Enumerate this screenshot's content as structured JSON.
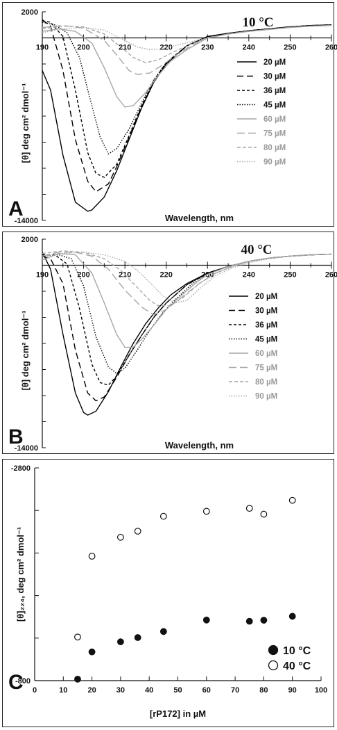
{
  "chart_data": [
    {
      "panel": "A",
      "type": "line",
      "title": "10 °C",
      "xlabel": "Wavelength, nm",
      "ylabel": "[θ] deg cm² dmol⁻¹",
      "xlim": [
        190,
        260
      ],
      "ylim": [
        -14000,
        2000
      ],
      "x_ticks": [
        "190",
        "200",
        "210",
        "220",
        "230",
        "240",
        "250",
        "260"
      ],
      "y_ticks": [
        "2000",
        "-14000"
      ],
      "legend_position": "right",
      "series": [
        {
          "name": "20 µM",
          "color": "#000000",
          "dash": "",
          "x": [
            190,
            192,
            195,
            198,
            201,
            202,
            205,
            208,
            211,
            214,
            217,
            220,
            225,
            230,
            235,
            240,
            245,
            250,
            255,
            260
          ],
          "y": [
            -2500,
            -4000,
            -9000,
            -12600,
            -13300,
            -13200,
            -12200,
            -10200,
            -7800,
            -5400,
            -3400,
            -2000,
            -600,
            100,
            350,
            550,
            700,
            850,
            950,
            1000
          ]
        },
        {
          "name": "30 µM",
          "color": "#000000",
          "dash": "9,5",
          "x": [
            190,
            192,
            195,
            198,
            201,
            203,
            206,
            208,
            211,
            214,
            217,
            220,
            225,
            230,
            235,
            240,
            245,
            250,
            255,
            260
          ],
          "y": [
            1400,
            900,
            -2500,
            -7800,
            -11000,
            -11800,
            -11200,
            -9900,
            -7600,
            -5300,
            -3400,
            -2000,
            -600,
            100,
            350,
            550,
            700,
            850,
            950,
            1000
          ]
        },
        {
          "name": "36 µM",
          "color": "#000000",
          "dash": "4,3",
          "x": [
            190,
            192,
            195,
            198,
            201,
            203,
            205,
            208,
            211,
            214,
            217,
            220,
            225,
            230,
            235,
            240,
            245,
            250,
            255,
            260
          ],
          "y": [
            1300,
            1200,
            100,
            -4000,
            -8800,
            -10400,
            -10700,
            -9700,
            -7500,
            -5200,
            -3300,
            -1900,
            -600,
            100,
            350,
            550,
            700,
            850,
            950,
            1000
          ]
        },
        {
          "name": "45 µM",
          "color": "#000000",
          "dash": "1.5,2",
          "x": [
            190,
            193,
            196,
            199,
            202,
            204,
            206,
            208,
            211,
            214,
            217,
            220,
            225,
            230,
            235,
            240,
            245,
            250,
            255,
            260
          ],
          "y": [
            1200,
            1000,
            400,
            -1500,
            -5200,
            -7600,
            -8900,
            -8500,
            -7000,
            -5000,
            -3200,
            -1900,
            -600,
            100,
            350,
            550,
            700,
            850,
            950,
            1000
          ]
        },
        {
          "name": "60 µM",
          "color": "#a6a6a6",
          "dash": "",
          "x": [
            190,
            194,
            198,
            202,
            205,
            208,
            210,
            212,
            215,
            218,
            221,
            225,
            230,
            235,
            240,
            245,
            250,
            255,
            260
          ],
          "y": [
            500,
            700,
            500,
            -400,
            -2300,
            -4500,
            -5300,
            -5200,
            -4200,
            -2900,
            -1800,
            -900,
            0,
            300,
            500,
            650,
            800,
            900,
            950
          ]
        },
        {
          "name": "75 µM",
          "color": "#a6a6a6",
          "dash": "11,5",
          "x": [
            190,
            195,
            200,
            205,
            208,
            211,
            213,
            216,
            219,
            222,
            226,
            230,
            235,
            240,
            245,
            250,
            255,
            260
          ],
          "y": [
            800,
            950,
            750,
            -200,
            -1300,
            -2500,
            -2800,
            -2700,
            -2100,
            -1400,
            -600,
            0,
            300,
            500,
            650,
            800,
            900,
            950
          ]
        },
        {
          "name": "80 µM",
          "color": "#a6a6a6",
          "dash": "5,3",
          "x": [
            190,
            195,
            200,
            205,
            209,
            212,
            215,
            218,
            221,
            225,
            230,
            235,
            240,
            245,
            250,
            255,
            260
          ],
          "y": [
            700,
            900,
            850,
            300,
            -700,
            -1500,
            -1900,
            -1700,
            -1200,
            -600,
            0,
            300,
            500,
            650,
            800,
            900,
            950
          ]
        },
        {
          "name": "90 µM",
          "color": "#a6a6a6",
          "dash": "1.5,2",
          "x": [
            190,
            195,
            200,
            205,
            210,
            213,
            216,
            219,
            222,
            226,
            230,
            235,
            240,
            245,
            250,
            255,
            260
          ],
          "y": [
            400,
            700,
            800,
            600,
            -200,
            -700,
            -900,
            -850,
            -600,
            -300,
            0,
            300,
            500,
            650,
            800,
            900,
            950
          ]
        }
      ]
    },
    {
      "panel": "B",
      "type": "line",
      "title": "40 °C",
      "xlabel": "Wavelength, nm",
      "ylabel": "[θ] deg cm² dmol⁻¹",
      "xlim": [
        190,
        260
      ],
      "ylim": [
        -14000,
        2000
      ],
      "x_ticks": [
        "190",
        "200",
        "210",
        "220",
        "230",
        "240",
        "250",
        "260"
      ],
      "y_ticks": [
        "2000",
        "-14000"
      ],
      "legend_position": "right",
      "series": [
        {
          "name": "20 µM",
          "color": "#000000",
          "dash": "",
          "x": [
            190,
            192,
            195,
            198,
            200,
            201,
            203,
            206,
            209,
            212,
            215,
            218,
            221,
            225,
            230,
            235,
            240,
            245,
            250,
            255,
            260
          ],
          "y": [
            1000,
            -300,
            -5300,
            -9800,
            -11300,
            -11500,
            -11200,
            -9700,
            -7800,
            -6000,
            -4500,
            -3300,
            -2300,
            -1400,
            -600,
            -100,
            300,
            550,
            700,
            800,
            850
          ]
        },
        {
          "name": "30 µM",
          "color": "#000000",
          "dash": "9,5",
          "x": [
            190,
            192,
            195,
            198,
            201,
            203,
            205,
            208,
            211,
            214,
            217,
            220,
            225,
            230,
            235,
            240,
            245,
            250,
            255,
            260
          ],
          "y": [
            700,
            500,
            -1400,
            -6500,
            -9800,
            -10400,
            -10100,
            -8600,
            -6900,
            -5400,
            -4000,
            -2900,
            -1500,
            -600,
            -100,
            300,
            550,
            700,
            800,
            850
          ]
        },
        {
          "name": "36 µM",
          "color": "#000000",
          "dash": "4,3",
          "x": [
            190,
            193,
            196,
            199,
            202,
            204,
            206,
            208,
            211,
            214,
            217,
            220,
            225,
            230,
            235,
            240,
            245,
            250,
            255,
            260
          ],
          "y": [
            800,
            800,
            100,
            -3300,
            -7600,
            -9000,
            -9200,
            -8500,
            -6900,
            -5400,
            -4000,
            -2900,
            -1500,
            -600,
            -100,
            300,
            550,
            700,
            800,
            850
          ]
        },
        {
          "name": "45 µM",
          "color": "#000000",
          "dash": "1.5,2",
          "x": [
            190,
            194,
            197,
            200,
            203,
            206,
            208,
            210,
            213,
            216,
            219,
            222,
            226,
            230,
            235,
            240,
            245,
            250,
            255,
            260
          ],
          "y": [
            700,
            800,
            500,
            -1600,
            -5500,
            -7800,
            -8300,
            -7900,
            -6500,
            -5000,
            -3700,
            -2700,
            -1500,
            -600,
            -100,
            300,
            550,
            700,
            800,
            850
          ]
        },
        {
          "name": "60 µM",
          "color": "#a6a6a6",
          "dash": "",
          "x": [
            190,
            194,
            198,
            202,
            205,
            208,
            210,
            212,
            214,
            217,
            220,
            223,
            227,
            230,
            235,
            240,
            245,
            250,
            255,
            260
          ],
          "y": [
            400,
            900,
            800,
            -600,
            -2900,
            -5300,
            -6300,
            -6300,
            -5700,
            -4600,
            -3400,
            -2500,
            -1400,
            -700,
            -100,
            300,
            550,
            700,
            800,
            850
          ]
        },
        {
          "name": "75 µM",
          "color": "#a6a6a6",
          "dash": "11,5",
          "x": [
            190,
            194,
            198,
            202,
            206,
            210,
            214,
            217,
            220,
            224,
            228,
            232,
            236,
            240,
            245,
            250,
            255,
            260
          ],
          "y": [
            700,
            1000,
            1000,
            700,
            -300,
            -1900,
            -3200,
            -3800,
            -3400,
            -2400,
            -1400,
            -600,
            -100,
            300,
            550,
            700,
            800,
            850
          ]
        },
        {
          "name": "80 µM",
          "color": "#a6a6a6",
          "dash": "5,3",
          "x": [
            190,
            195,
            200,
            205,
            209,
            213,
            216,
            218,
            221,
            224,
            228,
            232,
            236,
            240,
            245,
            250,
            255,
            260
          ],
          "y": [
            900,
            1100,
            1000,
            500,
            -400,
            -1700,
            -2700,
            -3100,
            -3100,
            -2500,
            -1400,
            -600,
            -100,
            300,
            550,
            700,
            800,
            850
          ]
        },
        {
          "name": "90 µM",
          "color": "#a6a6a6",
          "dash": "1.5,2",
          "x": [
            190,
            195,
            200,
            205,
            210,
            213,
            216,
            219,
            222,
            225,
            228,
            232,
            236,
            240,
            245,
            250,
            255,
            260
          ],
          "y": [
            700,
            900,
            1000,
            800,
            300,
            -400,
            -1300,
            -2300,
            -2900,
            -2700,
            -1800,
            -800,
            -200,
            200,
            500,
            700,
            800,
            850
          ]
        }
      ]
    },
    {
      "panel": "C",
      "type": "scatter",
      "xlabel": "[rP172] in µM",
      "ylabel": "[θ]₂₂₄, deg cm² dmol⁻¹",
      "xlim": [
        0,
        100
      ],
      "ylim": [
        -800,
        -2800
      ],
      "x_ticks": [
        "0",
        "10",
        "20",
        "30",
        "40",
        "50",
        "60",
        "70",
        "80",
        "90",
        "100"
      ],
      "y_ticks": [
        "-2800",
        "-800"
      ],
      "legend_position": "bottom-right",
      "series": [
        {
          "name": "10 °C",
          "marker": "filled",
          "x": [
            15,
            20,
            30,
            36,
            45,
            60,
            75,
            80,
            90
          ],
          "y": [
            -814,
            -1070,
            -1165,
            -1205,
            -1262,
            -1370,
            -1358,
            -1368,
            -1405
          ]
        },
        {
          "name": "40 °C",
          "marker": "open",
          "x": [
            15,
            20,
            30,
            36,
            45,
            60,
            75,
            80,
            90
          ],
          "y": [
            -1210,
            -1970,
            -2148,
            -2205,
            -2345,
            -2392,
            -2420,
            -2365,
            -2495
          ]
        }
      ]
    }
  ],
  "panel_letters": {
    "a": "A",
    "b": "B",
    "c": "C"
  }
}
